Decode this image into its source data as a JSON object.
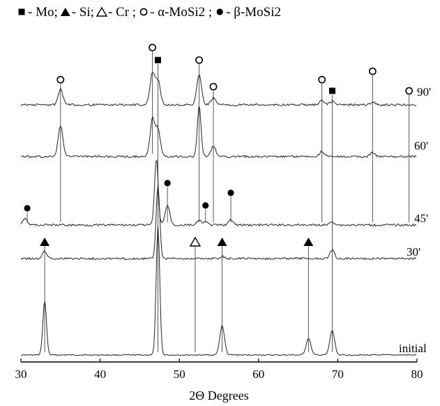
{
  "chart_data": {
    "type": "line",
    "title": "",
    "xlabel": "2Θ Degrees",
    "ylabel": "",
    "xlim": [
      30,
      80
    ],
    "xticks": [
      30,
      40,
      50,
      60,
      70,
      80
    ],
    "grid": false,
    "legend_position": "top",
    "legend": [
      {
        "marker": "filled-square",
        "sep": " - ",
        "text": "Mo;"
      },
      {
        "marker": "filled-triangle",
        "sep": " - ",
        "text": "Si;"
      },
      {
        "marker": "open-triangle",
        "sep": "- ",
        "text": "Cr ;"
      },
      {
        "marker": "open-circle",
        "sep": " - ",
        "text": "α-MoSi2 ;"
      },
      {
        "marker": "filled-circle",
        "sep": " - ",
        "text": "β-MoSi2"
      }
    ],
    "series": [
      {
        "name": "initial",
        "peaks": [
          {
            "x": 33.0,
            "h": 0.78
          },
          {
            "x": 47.3,
            "h": 1.85
          },
          {
            "x": 55.4,
            "h": 0.42
          },
          {
            "x": 66.3,
            "h": 0.24
          },
          {
            "x": 69.3,
            "h": 0.35
          }
        ]
      },
      {
        "name": "30'",
        "peaks": [
          {
            "x": 33.0,
            "h": 0.1
          },
          {
            "x": 47.3,
            "h": 1.05
          },
          {
            "x": 55.4,
            "h": 0.03
          },
          {
            "x": 69.3,
            "h": 0.12
          }
        ]
      },
      {
        "name": "45'",
        "peaks": [
          {
            "x": 30.5,
            "h": 0.1
          },
          {
            "x": 47.1,
            "h": 0.95
          },
          {
            "x": 48.5,
            "h": 0.28
          },
          {
            "x": 52.5,
            "h": 0.06
          },
          {
            "x": 53.3,
            "h": 0.04
          },
          {
            "x": 56.5,
            "h": 0.07
          },
          {
            "x": 69.3,
            "h": 0.05
          }
        ]
      },
      {
        "name": "60'",
        "peaks": [
          {
            "x": 35.0,
            "h": 0.44
          },
          {
            "x": 46.6,
            "h": 0.53
          },
          {
            "x": 47.3,
            "h": 0.38
          },
          {
            "x": 52.5,
            "h": 0.73
          },
          {
            "x": 54.3,
            "h": 0.15
          },
          {
            "x": 68.0,
            "h": 0.07
          },
          {
            "x": 74.4,
            "h": 0.06
          }
        ]
      },
      {
        "name": "90'",
        "peaks": [
          {
            "x": 35.0,
            "h": 0.22
          },
          {
            "x": 46.6,
            "h": 0.45
          },
          {
            "x": 47.3,
            "h": 0.35
          },
          {
            "x": 52.5,
            "h": 0.43
          },
          {
            "x": 54.3,
            "h": 0.1
          },
          {
            "x": 68.0,
            "h": 0.06
          },
          {
            "x": 69.3,
            "h": 0.05
          },
          {
            "x": 74.4,
            "h": 0.04
          }
        ]
      }
    ],
    "reference_lines": [
      {
        "x": 33.0,
        "from": "initial",
        "to": "30'",
        "marker": "filled-triangle"
      },
      {
        "x": 47.3,
        "from": "initial",
        "to": "90'",
        "marker": "filled-square"
      },
      {
        "x": 52.0,
        "from": "initial",
        "to": "30'",
        "marker": "open-triangle"
      },
      {
        "x": 55.4,
        "from": "initial",
        "to": "30'",
        "marker": "filled-triangle"
      },
      {
        "x": 66.3,
        "from": "initial",
        "to": "30'",
        "marker": "filled-triangle"
      },
      {
        "x": 69.3,
        "from": "initial",
        "to": "90'",
        "marker": "filled-square"
      },
      {
        "x": 35.0,
        "from": "45'",
        "to": "90'",
        "marker": "open-circle"
      },
      {
        "x": 46.6,
        "from": "60'",
        "to": "90'",
        "marker": "open-circle"
      },
      {
        "x": 52.5,
        "from": "45'",
        "to": "90'",
        "marker": "open-circle"
      },
      {
        "x": 54.3,
        "from": "45'",
        "to": "90'",
        "marker": "open-circle"
      },
      {
        "x": 68.0,
        "from": "45'",
        "to": "90'",
        "marker": "open-circle"
      },
      {
        "x": 74.4,
        "from": "45'",
        "to": "90'",
        "marker": "open-circle"
      },
      {
        "x": 79.0,
        "from": "45'",
        "to": "90'",
        "marker": "open-circle"
      },
      {
        "x": 30.8,
        "from": "45'",
        "to": "45'",
        "marker": "filled-circle"
      },
      {
        "x": 48.5,
        "from": "45'",
        "to": "45'",
        "marker": "filled-circle"
      },
      {
        "x": 53.3,
        "from": "45'",
        "to": "45'",
        "marker": "filled-circle"
      },
      {
        "x": 56.5,
        "from": "45'",
        "to": "45'",
        "marker": "filled-circle"
      }
    ]
  }
}
